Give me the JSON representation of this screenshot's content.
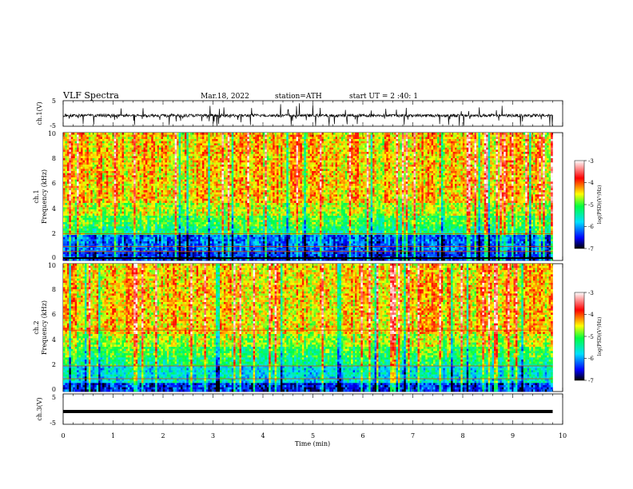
{
  "header": {
    "title": "VLF  Spectra",
    "date": "Mar.18, 2022",
    "station": "station=ATH",
    "start": "start  UT  =   2  :40: 1"
  },
  "chart_data": [
    {
      "type": "line",
      "name": "ch1 waveform",
      "ylabel": "ch.1(V)",
      "ylim": [
        -5,
        5
      ],
      "yticks": [
        "5",
        "-5"
      ],
      "xlim": [
        0,
        10
      ],
      "baseline": -0.8,
      "spike_amplitude": 4.5
    },
    {
      "type": "heatmap",
      "name": "ch1 spectrogram",
      "ylabel": "ch.1\nFrequency  (kHz)",
      "ylabel_line1": "ch.1",
      "ylabel_line2": "Frequency  (kHz)",
      "ylim": [
        0,
        10
      ],
      "yticks": [
        "0",
        "2",
        "4",
        "6",
        "8",
        "10"
      ],
      "xlim": [
        0,
        9.8
      ],
      "colorbar": {
        "label": "log(PSD)(V²/Hz)",
        "ticks": [
          "-3",
          "-4",
          "-5",
          "-6",
          "-7"
        ],
        "range": [
          -7,
          -3
        ]
      }
    },
    {
      "type": "heatmap",
      "name": "ch2 spectrogram",
      "ylabel": "ch.2\nFrequency  (kHz)",
      "ylabel_line1": "ch.2",
      "ylabel_line2": "Frequency  (kHz)",
      "ylim": [
        0,
        10
      ],
      "yticks": [
        "0",
        "2",
        "4",
        "6",
        "8",
        "10"
      ],
      "xlim": [
        0,
        9.8
      ],
      "colorbar": {
        "label": "log(PSD)(V²/Hz)",
        "ticks": [
          "-3",
          "-4",
          "-5",
          "-6",
          "-7"
        ],
        "range": [
          -7,
          -3
        ]
      }
    },
    {
      "type": "line",
      "name": "ch3 waveform",
      "ylabel": "ch.3(V)",
      "ylim": [
        -5,
        5
      ],
      "yticks": [
        "5",
        "-5"
      ],
      "xlim": [
        0,
        10
      ],
      "baseline": -0.8
    }
  ],
  "xaxis": {
    "label": "Time  (min)",
    "ticks": [
      "0",
      "1",
      "2",
      "3",
      "4",
      "5",
      "6",
      "7",
      "8",
      "9",
      "10"
    ],
    "range": [
      0,
      10
    ]
  },
  "colors": {
    "colormap": [
      "#000000",
      "#0000ff",
      "#00e0ff",
      "#00ff40",
      "#ffff00",
      "#ff0000",
      "#ffffff"
    ]
  }
}
